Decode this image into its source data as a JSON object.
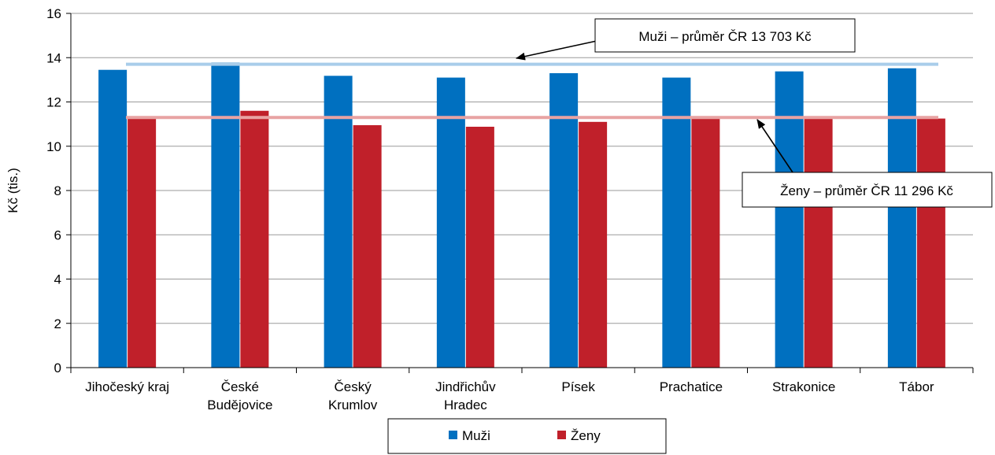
{
  "chart_data": {
    "type": "bar",
    "ylabel": "Kč (tis.)",
    "ylim": [
      0,
      16
    ],
    "yticks": [
      0,
      2,
      4,
      6,
      8,
      10,
      12,
      14,
      16
    ],
    "grid": true,
    "legend_position": "bottom",
    "categories": [
      [
        "Jihočeský kraj"
      ],
      [
        "České",
        "Budějovice"
      ],
      [
        "Český",
        "Krumlov"
      ],
      [
        "Jindřichův",
        "Hradec"
      ],
      [
        "Písek"
      ],
      [
        "Prachatice"
      ],
      [
        "Strakonice"
      ],
      [
        "Tábor"
      ]
    ],
    "series": [
      {
        "name": "Muži",
        "color": "#0070C0",
        "values": [
          13.45,
          13.78,
          13.18,
          13.1,
          13.3,
          13.1,
          13.38,
          13.52
        ]
      },
      {
        "name": "Ženy",
        "color": "#C0202A",
        "values": [
          11.3,
          11.6,
          10.95,
          10.88,
          11.1,
          11.3,
          11.3,
          11.25
        ]
      }
    ],
    "reference_lines": [
      {
        "series": "Muži",
        "value": 13.703,
        "color": "#A9CDEA",
        "label": "Muži – průměr ČR  13 703 Kč"
      },
      {
        "series": "Ženy",
        "value": 11.296,
        "color": "#E8A3A3",
        "label": "Ženy – průměr ČR  11 296 Kč"
      }
    ]
  }
}
